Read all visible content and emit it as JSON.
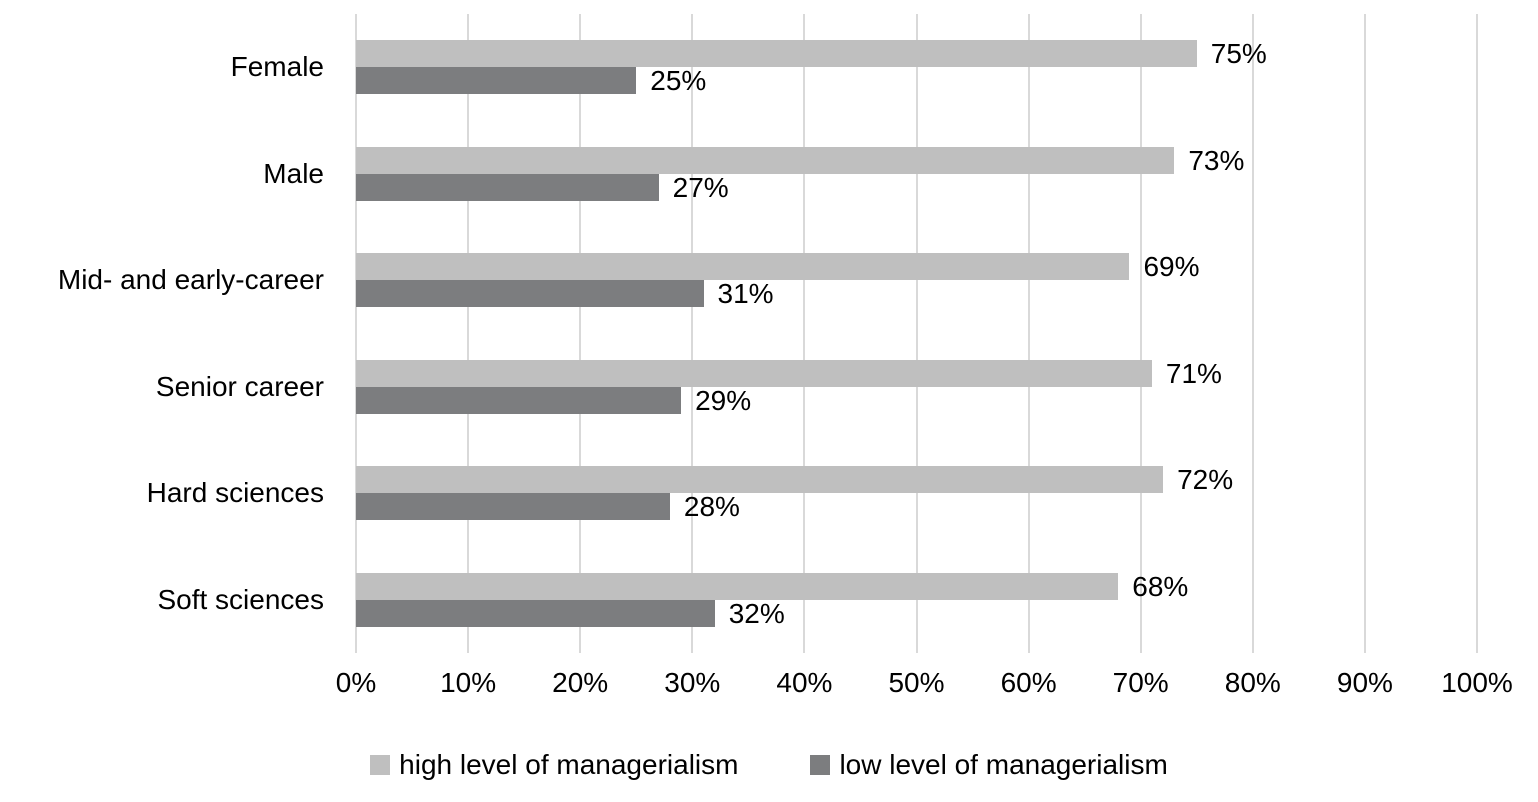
{
  "chart_data": {
    "type": "bar",
    "orientation": "horizontal",
    "title": "",
    "xlabel": "",
    "ylabel": "",
    "categories": [
      "Female",
      "Male",
      "Mid- and early-career",
      "Senior career",
      "Hard sciences",
      "Soft sciences"
    ],
    "series": [
      {
        "name": "high level of managerialism",
        "color": "#BFBFBF",
        "values": [
          75,
          73,
          69,
          71,
          72,
          68
        ],
        "labels": [
          "75%",
          "73%",
          "69%",
          "71%",
          "72%",
          "68%"
        ]
      },
      {
        "name": "low level of managerialism",
        "color": "#7C7D7F",
        "values": [
          25,
          27,
          31,
          29,
          28,
          32
        ],
        "labels": [
          "25%",
          "27%",
          "31%",
          "29%",
          "28%",
          "32%"
        ]
      }
    ],
    "xlim": [
      0,
      100
    ],
    "x_ticks": [
      "0%",
      "10%",
      "20%",
      "30%",
      "40%",
      "50%",
      "60%",
      "70%",
      "80%",
      "90%",
      "100%"
    ],
    "x_tick_values": [
      0,
      10,
      20,
      30,
      40,
      50,
      60,
      70,
      80,
      90,
      100
    ],
    "grid": "vertical",
    "legend_position": "bottom"
  },
  "colors": {
    "background": "#FFFFFF",
    "gridline": "#D9D9D9",
    "axis_line": "#D9D9D9",
    "text": "#000000"
  }
}
